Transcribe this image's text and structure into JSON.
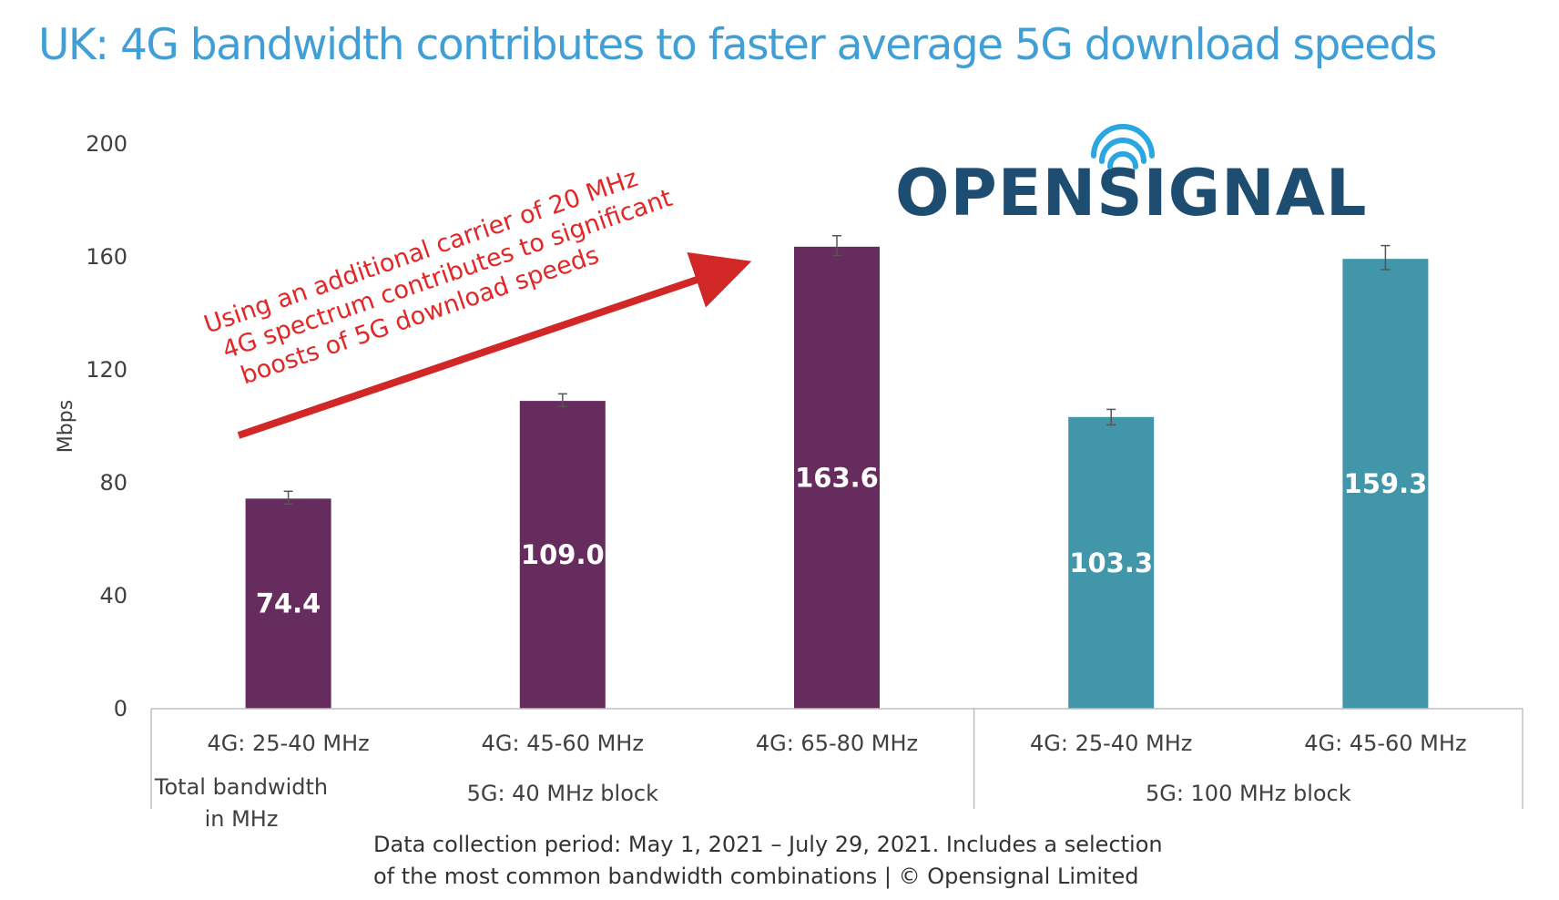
{
  "title": "UK: 4G bandwidth contributes to faster average 5G download speeds",
  "logo": {
    "text": "OPENSIGNAL",
    "color": "#1e4d72",
    "accent": "#2aa6e0"
  },
  "annotation": {
    "lines": [
      "Using an additional carrier of 20 MHz",
      "4G spectrum contributes to significant",
      "boosts of 5G download speeds"
    ],
    "color": "#e32727"
  },
  "footnote": {
    "line1": "Data collection period: May 1, 2021 – July 29, 2021. Includes a selection",
    "line2": "of the most common bandwidth combinations | © Opensignal Limited"
  },
  "colors": {
    "purple": "#652c5d",
    "teal": "#4196a9",
    "axis": "#bfbfbf",
    "text": "#404040"
  },
  "chart_data": {
    "type": "bar",
    "ylabel": "Mbps",
    "ylim": [
      0,
      200
    ],
    "yticks": [
      0,
      40,
      80,
      120,
      160,
      200
    ],
    "categories": [
      "4G: 25-40 MHz",
      "4G: 45-60 MHz",
      "4G: 65-80 MHz",
      "4G: 25-40 MHz",
      "4G: 45-60 MHz"
    ],
    "values": [
      74.4,
      109.0,
      163.6,
      103.3,
      159.3
    ],
    "value_labels": [
      "74.4",
      "109.0",
      "163.6",
      "103.3",
      "159.3"
    ],
    "error_bars": [
      [
        72.5,
        77.0
      ],
      [
        107.0,
        111.5
      ],
      [
        160.5,
        167.5
      ],
      [
        100.5,
        106.0
      ],
      [
        155.5,
        164.0
      ]
    ],
    "bar_colors": [
      "#652c5d",
      "#652c5d",
      "#652c5d",
      "#4196a9",
      "#4196a9"
    ],
    "groups": [
      {
        "label": "5G: 40 MHz block",
        "indices": [
          0,
          1,
          2
        ]
      },
      {
        "label": "5G: 100 MHz block",
        "indices": [
          3,
          4
        ]
      }
    ],
    "axis_title_lines": [
      "Total bandwidth",
      "in MHz"
    ]
  }
}
